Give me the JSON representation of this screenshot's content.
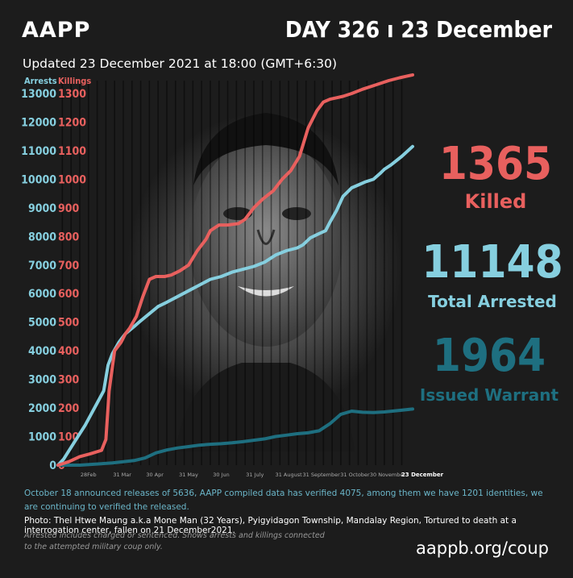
{
  "header": {
    "brand": "AAPP",
    "day": "DAY 326 ı 23 December",
    "updated": "Updated 23 December 2021 at 18:00 (GMT+6:30)"
  },
  "stats": {
    "killed_value": "1365",
    "killed_label": "Killed",
    "arrested_value": "11148",
    "arrested_label": "Total Arrested",
    "warrant_value": "1964",
    "warrant_label": "Issued Warrant"
  },
  "colors": {
    "killed": "#e8605e",
    "arrested": "#86cfdf",
    "warrant": "#1e6f80",
    "background": "#1c1c1c"
  },
  "chart_data": {
    "type": "line",
    "axis_titles": {
      "left": "Arrests",
      "right": "Killings"
    },
    "left_axis": {
      "ticks": [
        "0",
        "1000",
        "2000",
        "3000",
        "4000",
        "5000",
        "6000",
        "7000",
        "8000",
        "9000",
        "10000",
        "11000",
        "12000",
        "13000"
      ],
      "ylim": [
        0,
        13000
      ]
    },
    "right_axis": {
      "ticks": [
        "0",
        "100",
        "200",
        "300",
        "400",
        "500",
        "600",
        "700",
        "800",
        "900",
        "1000",
        "1100",
        "1200",
        "1300"
      ],
      "ylim": [
        0,
        1300
      ]
    },
    "x_tick_labels": [
      "28Feb",
      "31 Mar",
      "30 Apr",
      "31 May",
      "30 Jun",
      "31 July",
      "31 August",
      "31 September",
      "31 October",
      "30 November",
      "23 December"
    ],
    "x_tick_days": [
      28,
      59,
      89,
      120,
      150,
      181,
      212,
      242,
      273,
      303,
      326
    ],
    "xlim": [
      0,
      326
    ],
    "series": [
      {
        "name": "Killings",
        "axis": "right",
        "x": [
          0,
          10,
          20,
          30,
          40,
          44,
          47,
          52,
          58,
          62,
          66,
          72,
          78,
          84,
          90,
          98,
          104,
          112,
          120,
          128,
          136,
          140,
          148,
          156,
          166,
          172,
          180,
          188,
          198,
          206,
          214,
          222,
          230,
          238,
          244,
          250,
          256,
          262,
          270,
          280,
          292,
          304,
          314,
          320,
          326
        ],
        "y": [
          0,
          12,
          30,
          40,
          52,
          90,
          260,
          400,
          430,
          460,
          480,
          520,
          590,
          650,
          660,
          660,
          665,
          680,
          700,
          750,
          790,
          820,
          840,
          840,
          845,
          860,
          900,
          930,
          960,
          1000,
          1030,
          1080,
          1180,
          1240,
          1270,
          1280,
          1285,
          1290,
          1300,
          1315,
          1330,
          1345,
          1355,
          1360,
          1365
        ]
      },
      {
        "name": "Arrests",
        "axis": "left",
        "x": [
          0,
          5,
          15,
          25,
          35,
          42,
          46,
          50,
          56,
          62,
          70,
          76,
          84,
          92,
          100,
          110,
          120,
          130,
          140,
          150,
          160,
          170,
          180,
          190,
          200,
          210,
          220,
          225,
          232,
          240,
          246,
          250,
          256,
          262,
          270,
          276,
          282,
          290,
          296,
          300,
          306,
          316,
          326
        ],
        "y": [
          0,
          200,
          800,
          1400,
          2100,
          2600,
          3500,
          3900,
          4300,
          4600,
          4850,
          5050,
          5300,
          5550,
          5700,
          5900,
          6100,
          6300,
          6500,
          6600,
          6750,
          6850,
          6950,
          7100,
          7350,
          7500,
          7600,
          7700,
          7950,
          8100,
          8200,
          8500,
          8900,
          9400,
          9700,
          9800,
          9900,
          10000,
          10200,
          10350,
          10500,
          10800,
          11148
        ]
      },
      {
        "name": "Issued Warrant",
        "axis": "left",
        "x": [
          0,
          20,
          40,
          50,
          60,
          70,
          80,
          90,
          100,
          110,
          120,
          130,
          140,
          150,
          160,
          170,
          180,
          190,
          200,
          210,
          220,
          230,
          240,
          250,
          260,
          270,
          280,
          290,
          300,
          310,
          320,
          326
        ],
        "y": [
          0,
          0,
          50,
          80,
          120,
          160,
          250,
          430,
          530,
          600,
          650,
          700,
          730,
          750,
          780,
          820,
          870,
          920,
          1000,
          1050,
          1100,
          1130,
          1200,
          1450,
          1780,
          1890,
          1850,
          1840,
          1860,
          1900,
          1940,
          1964
        ]
      }
    ]
  },
  "notes": {
    "release": "October 18 announced releases of 5636, AAPP compiled data has verified 4075, among them we have 1201 identities, we are continuing to verified the released.",
    "photo": "Photo: Thel Htwe Maung a.k.a Mone Man (32 Years), Pyigyidagon Township, Mandalay Region, Tortured to death at a interrogation center, fallen on 21 December2021.",
    "disclaimer1": "Arrested includes charged or sentenced. Shows arrests and killings connected",
    "disclaimer2": "to the attempted military coup only.",
    "url": "aappb.org/coup"
  }
}
